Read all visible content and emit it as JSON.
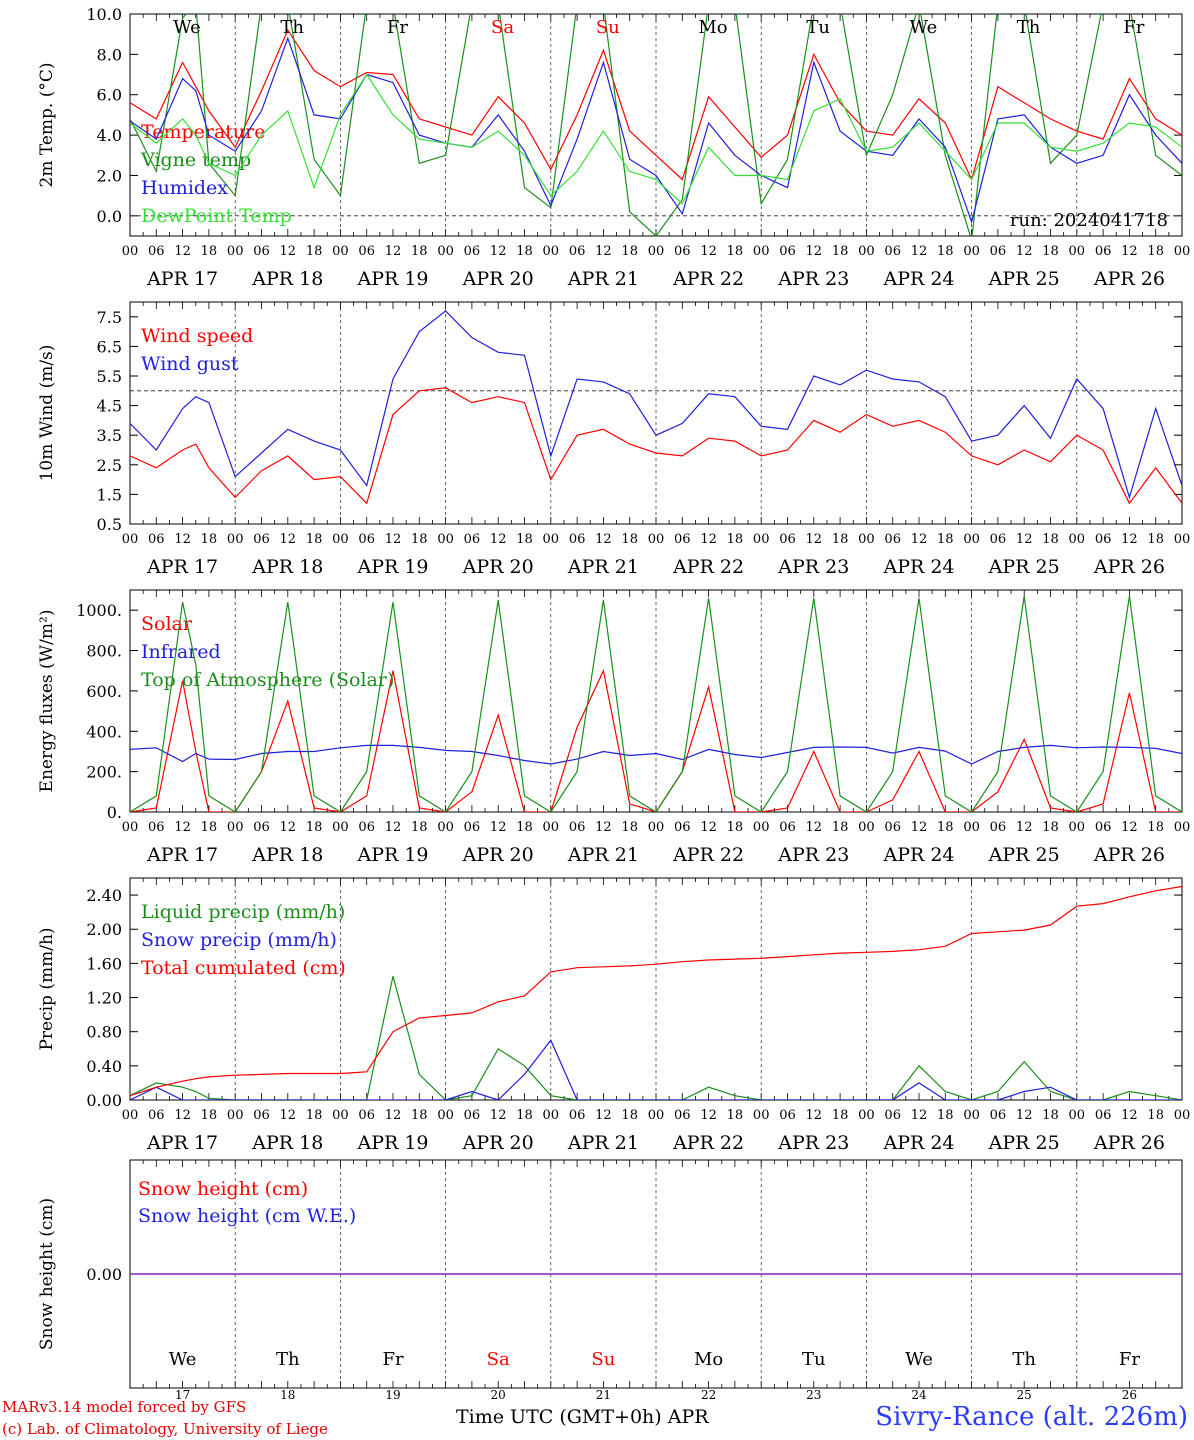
{
  "run_label": "run: 2024041718",
  "credits": {
    "line1": "MARv3.14 model forced by GFS",
    "line2": "(c) Lab. of Climatology, University of Liege"
  },
  "x_axis_caption": "Time UTC (GMT+0h)",
  "x_axis_month": "APR",
  "station": "Sivry-Rance (alt. 226m)",
  "colors": {
    "red": "#ff0000",
    "green": "#1a8f1a",
    "blue": "#1f1fdd",
    "lightgreen": "#33e033",
    "purple": "#7f1fb0",
    "weekend": "#ff0000"
  },
  "time": {
    "days": [
      "APR 17",
      "APR 18",
      "APR 19",
      "APR 20",
      "APR 21",
      "APR 22",
      "APR 23",
      "APR 24",
      "APR 25",
      "APR 26"
    ],
    "hour_labels": [
      "00",
      "06",
      "12",
      "18"
    ],
    "final_hour_label": "00",
    "weekdays": [
      "We",
      "Th",
      "Fr",
      "Sa",
      "Su",
      "Mo",
      "Tu",
      "We",
      "Th",
      "Fr"
    ],
    "weekend_flags": [
      false,
      false,
      false,
      true,
      true,
      false,
      false,
      false,
      false,
      false
    ],
    "day_numbers": [
      "17",
      "18",
      "19",
      "20",
      "21",
      "22",
      "23",
      "24",
      "25",
      "26"
    ]
  },
  "chart_data": [
    {
      "type": "line",
      "ylabel": "2m Temp. (°C)",
      "ylim": [
        -1.0,
        10.0
      ],
      "yticks": [
        "0.0",
        "2.0",
        "4.0",
        "6.0",
        "8.0",
        "10.0"
      ],
      "ytick_values": [
        0,
        2,
        4,
        6,
        8,
        10
      ],
      "reference_line": 0,
      "x_hours": [
        0,
        6,
        12,
        15,
        18,
        24,
        30,
        36,
        42,
        48,
        54,
        60,
        66,
        72,
        78,
        84,
        90,
        96,
        102,
        108,
        114,
        120,
        126,
        132,
        138,
        144,
        150,
        156,
        162,
        168,
        174,
        180,
        186,
        192,
        198,
        204,
        210,
        216,
        222,
        228,
        234,
        240
      ],
      "series": [
        {
          "name": "Temperature",
          "color": "red",
          "values": [
            5.6,
            4.8,
            7.6,
            6.4,
            5.2,
            3.4,
            6.2,
            9.2,
            7.2,
            6.4,
            7.1,
            7.0,
            4.8,
            4.4,
            4.0,
            5.9,
            4.6,
            2.3,
            5.0,
            8.2,
            4.2,
            3.0,
            1.8,
            5.9,
            4.4,
            2.9,
            4.0,
            8.0,
            5.6,
            4.2,
            4.0,
            5.8,
            4.6,
            1.8,
            6.4,
            5.6,
            4.8,
            4.2,
            3.8,
            6.8,
            4.8,
            4.0
          ]
        },
        {
          "name": "Vigne temp",
          "color": "green",
          "values": [
            4.8,
            2.2,
            9.8,
            10.5,
            2.6,
            1.0,
            10.5,
            10.5,
            2.8,
            1.0,
            10.5,
            10.5,
            2.6,
            3.0,
            10.5,
            10.5,
            1.4,
            0.4,
            10.5,
            10.5,
            0.2,
            -1.0,
            0.8,
            10.5,
            10.5,
            0.6,
            2.8,
            10.5,
            10.5,
            3.0,
            6.0,
            10.5,
            3.0,
            -1.2,
            10.5,
            10.5,
            2.6,
            4.0,
            10.5,
            10.5,
            3.0,
            2.0
          ]
        },
        {
          "name": "Humidex",
          "color": "blue",
          "values": [
            4.7,
            3.8,
            6.8,
            6.2,
            4.0,
            3.2,
            5.2,
            8.8,
            5.0,
            4.8,
            7.0,
            6.6,
            4.0,
            3.6,
            3.4,
            5.0,
            3.2,
            0.5,
            3.8,
            7.6,
            2.8,
            2.0,
            0.1,
            4.6,
            3.0,
            2.0,
            1.4,
            7.6,
            4.2,
            3.2,
            3.0,
            4.8,
            3.4,
            -0.3,
            4.8,
            5.0,
            3.4,
            2.6,
            3.0,
            6.0,
            4.0,
            2.6
          ]
        },
        {
          "name": "DewPoint Temp",
          "color": "lightgreen",
          "values": [
            4.6,
            3.6,
            4.8,
            4.0,
            2.6,
            2.0,
            4.0,
            5.2,
            1.4,
            5.0,
            7.0,
            5.0,
            3.8,
            3.6,
            3.4,
            4.2,
            3.0,
            1.0,
            2.2,
            4.2,
            2.2,
            1.8,
            0.6,
            3.4,
            2.0,
            2.0,
            1.8,
            5.2,
            5.8,
            3.2,
            3.4,
            4.6,
            3.2,
            1.8,
            4.6,
            4.6,
            3.4,
            3.2,
            3.6,
            4.6,
            4.4,
            3.4
          ]
        }
      ]
    },
    {
      "type": "line",
      "ylabel": "10m Wind (m/s)",
      "ylim": [
        0.5,
        8.0
      ],
      "yticks": [
        "0.5",
        "1.5",
        "2.5",
        "3.5",
        "4.5",
        "5.5",
        "6.5",
        "7.5"
      ],
      "ytick_values": [
        0.5,
        1.5,
        2.5,
        3.5,
        4.5,
        5.5,
        6.5,
        7.5
      ],
      "reference_line": 5,
      "x_hours": [
        0,
        6,
        12,
        15,
        18,
        24,
        30,
        36,
        42,
        48,
        54,
        60,
        66,
        72,
        78,
        84,
        90,
        96,
        102,
        108,
        114,
        120,
        126,
        132,
        138,
        144,
        150,
        156,
        162,
        168,
        174,
        180,
        186,
        192,
        198,
        204,
        210,
        216,
        222,
        228,
        234,
        240
      ],
      "series": [
        {
          "name": "Wind speed",
          "color": "red",
          "values": [
            2.8,
            2.4,
            3.0,
            3.2,
            2.4,
            1.4,
            2.3,
            2.8,
            2.0,
            2.1,
            1.2,
            4.2,
            5.0,
            5.1,
            4.6,
            4.8,
            4.6,
            2.0,
            3.5,
            3.7,
            3.2,
            2.9,
            2.8,
            3.4,
            3.3,
            2.8,
            3.0,
            4.0,
            3.6,
            4.2,
            3.8,
            4.0,
            3.6,
            2.8,
            2.5,
            3.0,
            2.6,
            3.5,
            3.0,
            1.2,
            2.4,
            1.2
          ]
        },
        {
          "name": "Wind gust",
          "color": "blue",
          "values": [
            3.9,
            3.0,
            4.4,
            4.8,
            4.6,
            2.1,
            2.9,
            3.7,
            3.3,
            3.0,
            1.8,
            5.4,
            7.0,
            7.7,
            6.8,
            6.3,
            6.2,
            2.8,
            5.4,
            5.3,
            4.9,
            3.5,
            3.9,
            4.9,
            4.8,
            3.8,
            3.7,
            5.5,
            5.2,
            5.7,
            5.4,
            5.3,
            4.8,
            3.3,
            3.5,
            4.5,
            3.4,
            5.4,
            4.4,
            1.4,
            4.4,
            1.8
          ]
        }
      ]
    },
    {
      "type": "line",
      "ylabel": "Energy fluxes (W/m²)",
      "ylim": [
        0,
        1100
      ],
      "yticks": [
        "0.",
        "200.",
        "400.",
        "600.",
        "800.",
        "1000."
      ],
      "ytick_values": [
        0,
        200,
        400,
        600,
        800,
        1000
      ],
      "x_hours": [
        0,
        6,
        12,
        15,
        18,
        24,
        30,
        36,
        42,
        48,
        54,
        60,
        66,
        72,
        78,
        84,
        90,
        96,
        102,
        108,
        114,
        120,
        126,
        132,
        138,
        144,
        150,
        156,
        162,
        168,
        174,
        180,
        186,
        192,
        198,
        204,
        210,
        216,
        222,
        228,
        234,
        240
      ],
      "series": [
        {
          "name": "Solar",
          "color": "red",
          "values": [
            0,
            20,
            650,
            300,
            0,
            0,
            200,
            550,
            20,
            0,
            80,
            700,
            20,
            0,
            100,
            480,
            0,
            0,
            420,
            700,
            40,
            0,
            200,
            620,
            0,
            0,
            20,
            300,
            0,
            0,
            60,
            300,
            0,
            0,
            100,
            360,
            20,
            0,
            40,
            590,
            0,
            0
          ]
        },
        {
          "name": "Infrared",
          "color": "blue",
          "values": [
            310,
            318,
            250,
            290,
            262,
            260,
            290,
            300,
            300,
            318,
            330,
            330,
            320,
            305,
            300,
            280,
            255,
            238,
            262,
            300,
            280,
            290,
            260,
            310,
            285,
            270,
            295,
            320,
            322,
            320,
            292,
            320,
            302,
            238,
            300,
            320,
            330,
            318,
            322,
            320,
            315,
            290
          ]
        },
        {
          "name": "Top of Atmosphere (Solar)",
          "color": "green",
          "values": [
            0,
            80,
            1040,
            730,
            80,
            0,
            200,
            1040,
            80,
            0,
            200,
            1040,
            80,
            0,
            200,
            1050,
            80,
            0,
            200,
            1050,
            80,
            0,
            200,
            1060,
            80,
            0,
            200,
            1060,
            80,
            0,
            200,
            1060,
            80,
            0,
            200,
            1070,
            80,
            0,
            200,
            1070,
            80,
            0
          ]
        }
      ]
    },
    {
      "type": "line",
      "ylabel": "Precip (mm/h)",
      "ylim": [
        0,
        2.6
      ],
      "yticks": [
        "0.00",
        "0.40",
        "0.80",
        "1.20",
        "1.60",
        "2.00",
        "2.40"
      ],
      "ytick_values": [
        0,
        0.4,
        0.8,
        1.2,
        1.6,
        2.0,
        2.4
      ],
      "x_hours": [
        0,
        6,
        12,
        15,
        18,
        24,
        30,
        36,
        42,
        48,
        54,
        60,
        66,
        72,
        78,
        84,
        90,
        96,
        102,
        108,
        114,
        120,
        126,
        132,
        138,
        144,
        150,
        156,
        162,
        168,
        174,
        180,
        186,
        192,
        198,
        204,
        210,
        216,
        222,
        228,
        234,
        240
      ],
      "series": [
        {
          "name": "Liquid precip (mm/h)",
          "color": "green",
          "values": [
            0.05,
            0.2,
            0.15,
            0.1,
            0.02,
            0.0,
            0.0,
            0.0,
            0.0,
            0.0,
            0.0,
            1.45,
            0.3,
            0.0,
            0.05,
            0.6,
            0.4,
            0.05,
            0.0,
            0.0,
            0.0,
            0.0,
            0.0,
            0.15,
            0.05,
            0.0,
            0.0,
            0.0,
            0.0,
            0.0,
            0.0,
            0.4,
            0.1,
            0.0,
            0.1,
            0.45,
            0.1,
            0.0,
            0.0,
            0.1,
            0.05,
            0.0
          ]
        },
        {
          "name": "Snow precip (mm/h)",
          "color": "blue",
          "values": [
            0.0,
            0.15,
            0.0,
            0.0,
            0.0,
            0.0,
            0.0,
            0.0,
            0.0,
            0.0,
            0.0,
            0.0,
            0.0,
            0.0,
            0.1,
            0.0,
            0.3,
            0.7,
            0.0,
            0.0,
            0.0,
            0.0,
            0.0,
            0.0,
            0.0,
            0.0,
            0.0,
            0.0,
            0.0,
            0.0,
            0.0,
            0.2,
            0.0,
            0.0,
            0.0,
            0.1,
            0.15,
            0.0,
            0.0,
            0.0,
            0.0,
            0.0
          ]
        },
        {
          "name": "Total cumulated (cm)",
          "color": "red",
          "values": [
            0.05,
            0.15,
            0.22,
            0.25,
            0.27,
            0.29,
            0.3,
            0.31,
            0.31,
            0.31,
            0.33,
            0.8,
            0.96,
            0.99,
            1.02,
            1.15,
            1.22,
            1.5,
            1.55,
            1.56,
            1.57,
            1.59,
            1.62,
            1.64,
            1.65,
            1.66,
            1.68,
            1.7,
            1.72,
            1.73,
            1.74,
            1.76,
            1.8,
            1.95,
            1.97,
            1.99,
            2.05,
            2.27,
            2.3,
            2.38,
            2.45,
            2.5
          ]
        }
      ]
    },
    {
      "type": "line",
      "ylabel": "Snow height (cm)",
      "ylim": [
        -1,
        1
      ],
      "yticks": [
        "0.00"
      ],
      "ytick_values": [
        0
      ],
      "x_hours": [
        0,
        240
      ],
      "series": [
        {
          "name": "Snow height (cm)",
          "color": "red",
          "values": [
            0.0,
            0.0
          ]
        },
        {
          "name": "Snow height (cm W.E.)",
          "color": "blue",
          "values": [
            0.0,
            0.0
          ]
        }
      ]
    }
  ]
}
